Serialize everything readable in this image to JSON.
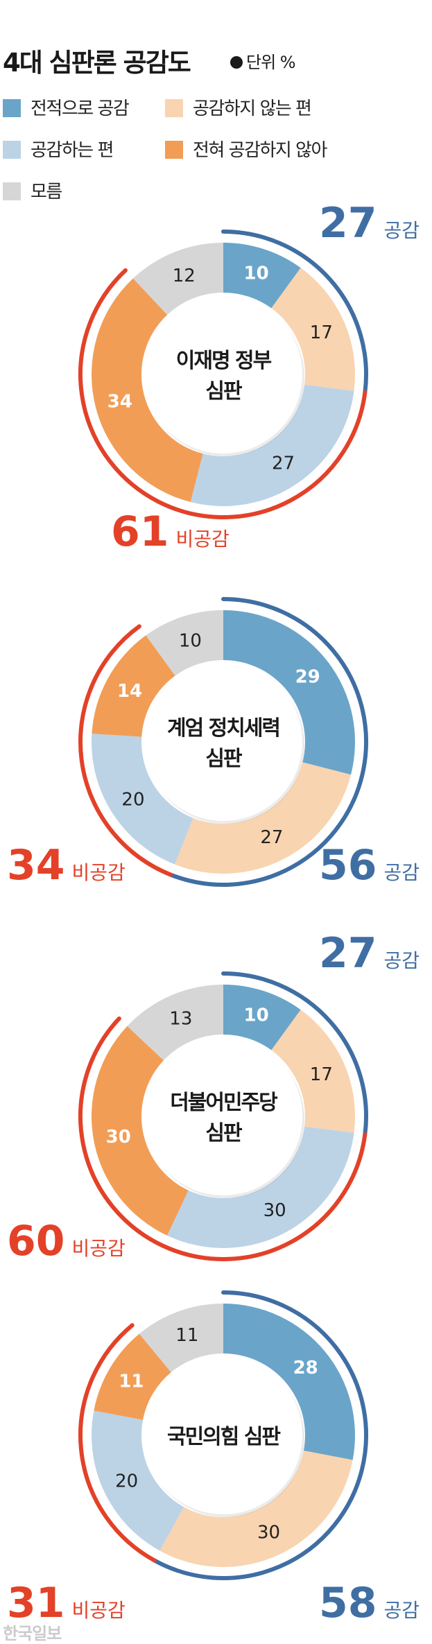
{
  "title": "4대 심판론 공감도",
  "unit": "단위 %",
  "watermark": "한국일보",
  "legend": [
    {
      "label": "전적으로 공감",
      "color": "#6aa5c9"
    },
    {
      "label": "공감하지 않는 편",
      "color": "#f9d4b0"
    },
    {
      "label": "공감하는 편",
      "color": "#bcd3e6"
    },
    {
      "label": "전혀 공감하지 않아",
      "color": "#f29d55"
    },
    {
      "label": "모름",
      "color": "#d6d6d6"
    }
  ],
  "colors": {
    "agree_arc": "#3f6ea3",
    "disagree_arc": "#e34128",
    "light_text": "#ffffff",
    "dark_text": "#222222"
  },
  "chart_data": [
    {
      "type": "pie",
      "center_label": [
        "이재명 정부",
        "심판"
      ],
      "categories": [
        "전적으로 공감",
        "공감하는 편",
        "공감하지 않는 편",
        "전혀 공감하지 않아",
        "모름"
      ],
      "values": [
        10,
        17,
        27,
        34,
        12
      ],
      "agree_total": 27,
      "agree_label": "공감",
      "disagree_total": 61,
      "disagree_label": "비공감"
    },
    {
      "type": "pie",
      "center_label": [
        "계엄 정치세력",
        "심판"
      ],
      "categories": [
        "전적으로 공감",
        "공감하는 편",
        "공감하지 않는 편",
        "전혀 공감하지 않아",
        "모름"
      ],
      "values": [
        29,
        27,
        20,
        14,
        10
      ],
      "agree_total": 56,
      "agree_label": "공감",
      "disagree_total": 34,
      "disagree_label": "비공감"
    },
    {
      "type": "pie",
      "center_label": [
        "더불어민주당",
        "심판"
      ],
      "categories": [
        "전적으로 공감",
        "공감하는 편",
        "공감하지 않는 편",
        "전혀 공감하지 않아",
        "모름"
      ],
      "values": [
        10,
        17,
        30,
        30,
        13
      ],
      "agree_total": 27,
      "agree_label": "공감",
      "disagree_total": 60,
      "disagree_label": "비공감"
    },
    {
      "type": "pie",
      "center_label": [
        "국민의힘 심판"
      ],
      "categories": [
        "전적으로 공감",
        "공감하는 편",
        "공감하지 않는 편",
        "전혀 공감하지 않아",
        "모름"
      ],
      "values": [
        28,
        30,
        20,
        11,
        11
      ],
      "agree_total": 58,
      "agree_label": "공감",
      "disagree_total": 31,
      "disagree_label": "비공감"
    }
  ]
}
